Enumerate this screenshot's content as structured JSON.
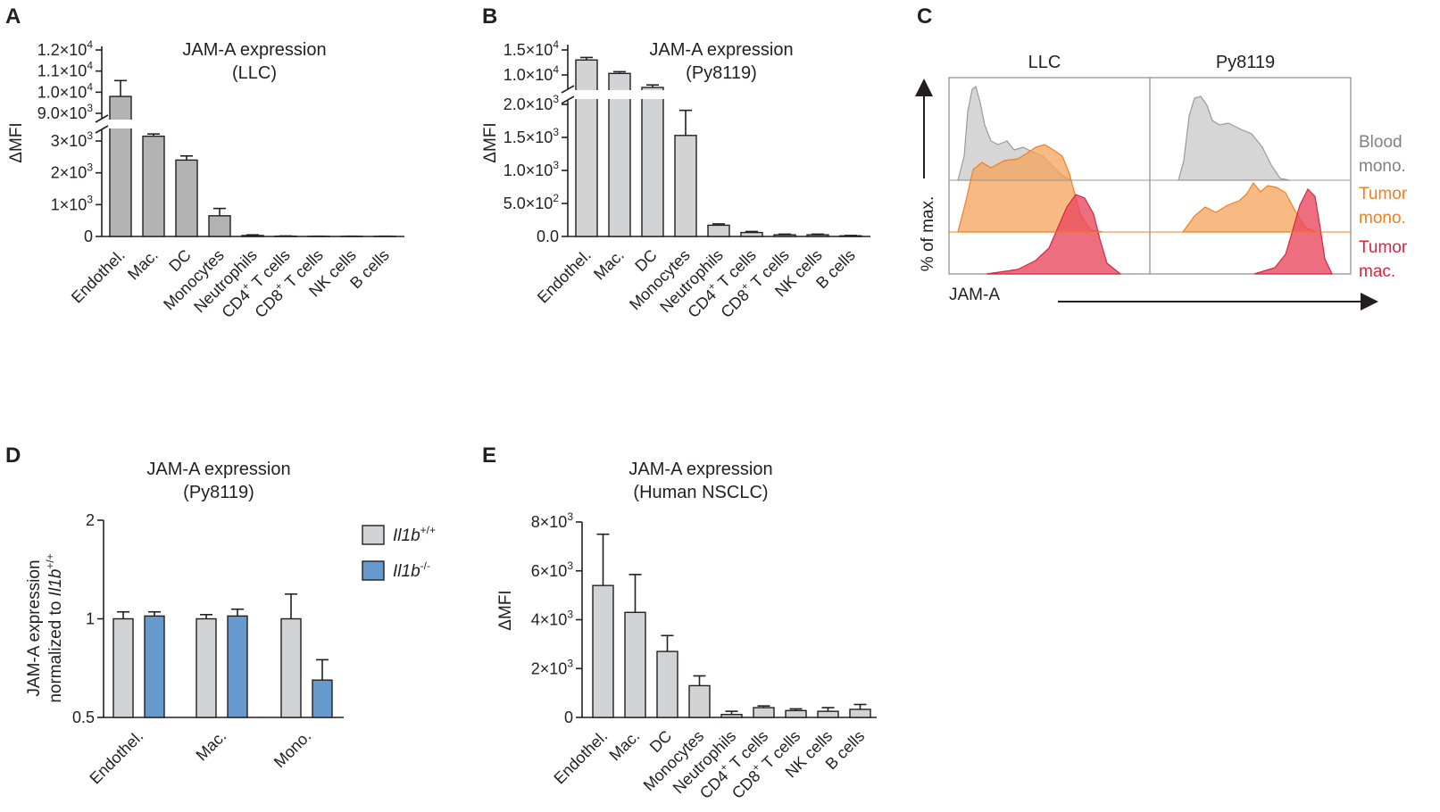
{
  "panels": {
    "A": {
      "letter": "A",
      "title_line1": "JAM-A expression",
      "title_line2": "(LLC)",
      "ylabel": "ΔMFI",
      "bar_color": "#b3b3b3",
      "upper_ticks": [
        {
          "value": 9000,
          "base": "9.0×10",
          "exp": "3"
        },
        {
          "value": 10000,
          "base": "1.0×10",
          "exp": "4"
        },
        {
          "value": 11000,
          "base": "1.1×10",
          "exp": "4"
        },
        {
          "value": 12000,
          "base": "1.2×10",
          "exp": "4"
        }
      ],
      "lower_ticks": [
        {
          "value": 0,
          "base": "0",
          "exp": ""
        },
        {
          "value": 1000,
          "base": "1×10",
          "exp": "3"
        },
        {
          "value": 2000,
          "base": "2×10",
          "exp": "3"
        },
        {
          "value": 3000,
          "base": "3×10",
          "exp": "3"
        }
      ]
    },
    "B": {
      "letter": "B",
      "title_line1": "JAM-A expression",
      "title_line2": "(Py8119)",
      "ylabel": "ΔMFI",
      "bar_color": "#d1d3d4",
      "upper_ticks": [
        {
          "value": 10000,
          "base": "1.0×10",
          "exp": "4"
        },
        {
          "value": 15000,
          "base": "1.5×10",
          "exp": "4"
        }
      ],
      "lower_ticks": [
        {
          "value": 0,
          "base": "0.0",
          "exp": ""
        },
        {
          "value": 500,
          "base": "5.0×10",
          "exp": "2"
        },
        {
          "value": 1000,
          "base": "1.0×10",
          "exp": "3"
        },
        {
          "value": 1500,
          "base": "1.5×10",
          "exp": "3"
        },
        {
          "value": 2000,
          "base": "2.0×10",
          "exp": "3"
        }
      ]
    },
    "C": {
      "letter": "C",
      "col_labels": [
        "LLC",
        "Py8119"
      ],
      "ylabel": "% of max.",
      "xlabel": "JAM-A",
      "legend": [
        {
          "line1": "Blood",
          "line2": "mono.",
          "color": "#808080"
        },
        {
          "line1": "Tumor",
          "line2": "mono.",
          "color": "#f07f22"
        },
        {
          "line1": "Tumor",
          "line2": "mac.",
          "color": "#d7263d"
        }
      ]
    },
    "D": {
      "letter": "D",
      "title_line1": "JAM-A expression",
      "title_line2": "(Py8119)",
      "ylabel_line1": "JAM-A expression",
      "ylabel_line2_prefix": "normalized to ",
      "ylabel_gene": "Il1b",
      "ylabel_sup": "+/+",
      "ticks": [
        {
          "value": 0.5,
          "label": "0.5"
        },
        {
          "value": 1,
          "label": "1"
        },
        {
          "value": 2,
          "label": "2"
        }
      ],
      "legend": [
        {
          "gene": "Il1b",
          "sup": "+/+",
          "color": "#d1d3d4"
        },
        {
          "gene": "Il1b",
          "sup": "-/-",
          "color": "#6699cc"
        }
      ]
    },
    "E": {
      "letter": "E",
      "title_line1": "JAM-A expression",
      "title_line2": "(Human NSCLC)",
      "ylabel": "ΔMFI",
      "bar_color": "#d1d3d4",
      "ticks": [
        {
          "value": 0,
          "base": "0",
          "exp": ""
        },
        {
          "value": 2000,
          "base": "2×10",
          "exp": "3"
        },
        {
          "value": 4000,
          "base": "4×10",
          "exp": "3"
        },
        {
          "value": 6000,
          "base": "6×10",
          "exp": "3"
        },
        {
          "value": 8000,
          "base": "8×10",
          "exp": "3"
        }
      ]
    }
  },
  "chart_data": [
    {
      "panel": "A",
      "type": "bar",
      "title": "JAM-A expression (LLC)",
      "ylabel": "ΔMFI",
      "categories": [
        "Endothel.",
        "Mac.",
        "DC",
        "Monocytes",
        "Neutrophils",
        "CD4+ T cells",
        "CD8+ T cells",
        "NK cells",
        "B cells"
      ],
      "values": [
        9800,
        3150,
        2400,
        650,
        30,
        10,
        5,
        5,
        5
      ],
      "errors": [
        750,
        70,
        130,
        230,
        20,
        5,
        3,
        3,
        3
      ],
      "ylim_lower": [
        0,
        3500
      ],
      "ylim_upper": [
        9000,
        12000
      ]
    },
    {
      "panel": "B",
      "type": "bar",
      "title": "JAM-A expression (Py8119)",
      "ylabel": "ΔMFI",
      "categories": [
        "Endothel.",
        "Mac.",
        "DC",
        "Monocytes",
        "Neutrophils",
        "CD4+ T cells",
        "CD8+ T cells",
        "NK cells",
        "B cells"
      ],
      "values": [
        13000,
        10300,
        7500,
        1530,
        170,
        60,
        25,
        25,
        10
      ],
      "errors": [
        500,
        350,
        500,
        380,
        20,
        15,
        10,
        10,
        5
      ],
      "ylim_lower": [
        0,
        2000
      ],
      "ylim_upper": [
        5000,
        15000
      ]
    },
    {
      "panel": "C",
      "type": "histogram",
      "columns": [
        "LLC",
        "Py8119"
      ],
      "series": [
        {
          "name": "Blood mono."
        },
        {
          "name": "Tumor mono."
        },
        {
          "name": "Tumor mac."
        }
      ],
      "xlabel": "JAM-A",
      "ylabel": "% of max."
    },
    {
      "panel": "D",
      "type": "bar",
      "title": "JAM-A expression (Py8119)",
      "ylabel": "JAM-A expression normalized to Il1b+/+",
      "yscale": "log2",
      "categories": [
        "Endothel.",
        "Mac.",
        "Mono."
      ],
      "series": [
        {
          "name": "Il1b+/+",
          "values": [
            1.0,
            1.0,
            1.0
          ],
          "errors": [
            0.05,
            0.03,
            0.19
          ]
        },
        {
          "name": "Il1b-/-",
          "values": [
            1.02,
            1.02,
            0.65
          ],
          "errors": [
            0.03,
            0.05,
            0.1
          ]
        }
      ],
      "ylim": [
        0.5,
        2
      ]
    },
    {
      "panel": "E",
      "type": "bar",
      "title": "JAM-A expression (Human NSCLC)",
      "ylabel": "ΔMFI",
      "categories": [
        "Endothel.",
        "Mac.",
        "DC",
        "Monocytes",
        "Neutrophils",
        "CD4+ T cells",
        "CD8+ T cells",
        "NK cells",
        "B cells"
      ],
      "values": [
        5400,
        4300,
        2700,
        1300,
        120,
        400,
        280,
        250,
        330
      ],
      "errors": [
        2100,
        1550,
        650,
        400,
        130,
        70,
        70,
        150,
        200
      ],
      "ylim": [
        0,
        8000
      ]
    }
  ]
}
